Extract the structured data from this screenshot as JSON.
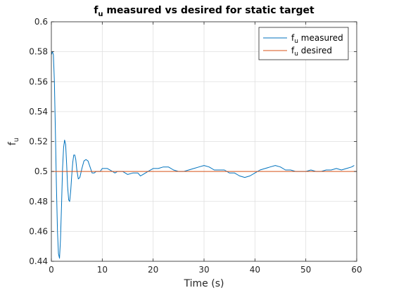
{
  "chart_data": {
    "type": "line",
    "title": "f measured vs desired for static target",
    "title_main": "f",
    "title_sub": "u",
    "title_rest": " measured vs desired for static target",
    "xlabel": "Time (s)",
    "ylabel_main": "f",
    "ylabel_sub": "u",
    "xlim": [
      0,
      60
    ],
    "ylim": [
      0.44,
      0.6
    ],
    "xticks": [
      0,
      10,
      20,
      30,
      40,
      50,
      60
    ],
    "yticks": [
      0.44,
      0.46,
      0.48,
      0.5,
      0.52,
      0.54,
      0.56,
      0.58,
      0.6
    ],
    "xtick_labels": [
      "0",
      "10",
      "20",
      "30",
      "40",
      "50",
      "60"
    ],
    "ytick_labels": [
      "0.44",
      "0.46",
      "0.48",
      "0.5",
      "0.52",
      "0.54",
      "0.56",
      "0.58",
      "0.6"
    ],
    "grid": true,
    "legend_position": "top-right",
    "series": [
      {
        "name_main": "f",
        "name_sub": "u",
        "name_rest": " measured",
        "color": "#0072bd",
        "x": [
          0,
          0.2,
          0.4,
          0.6,
          0.8,
          1.0,
          1.2,
          1.4,
          1.6,
          1.8,
          2.0,
          2.2,
          2.4,
          2.6,
          2.8,
          3.0,
          3.2,
          3.4,
          3.6,
          3.8,
          4.0,
          4.2,
          4.4,
          4.6,
          4.8,
          5.0,
          5.3,
          5.6,
          6.0,
          6.4,
          6.8,
          7.2,
          7.6,
          8.0,
          8.4,
          8.8,
          9.2,
          9.6,
          10,
          11,
          12,
          12.5,
          13,
          14,
          15,
          16,
          17,
          17.5,
          18,
          19,
          20,
          21,
          22,
          23,
          24,
          25,
          26,
          27,
          28,
          29,
          30,
          31,
          32,
          33,
          34,
          35,
          36,
          37,
          38,
          39,
          40,
          41,
          42,
          43,
          44,
          45,
          46,
          47,
          48,
          49,
          50,
          51,
          52,
          53,
          54,
          55,
          56,
          57,
          58,
          59,
          59.5
        ],
        "y": [
          0.578,
          0.58,
          0.578,
          0.56,
          0.525,
          0.49,
          0.46,
          0.445,
          0.442,
          0.455,
          0.478,
          0.502,
          0.516,
          0.521,
          0.518,
          0.505,
          0.49,
          0.481,
          0.48,
          0.487,
          0.497,
          0.506,
          0.511,
          0.511,
          0.508,
          0.501,
          0.495,
          0.496,
          0.502,
          0.507,
          0.508,
          0.507,
          0.503,
          0.499,
          0.499,
          0.5,
          0.5,
          0.5,
          0.502,
          0.502,
          0.5,
          0.499,
          0.5,
          0.5,
          0.498,
          0.499,
          0.499,
          0.497,
          0.498,
          0.5,
          0.502,
          0.502,
          0.503,
          0.503,
          0.501,
          0.5,
          0.5,
          0.501,
          0.502,
          0.503,
          0.504,
          0.503,
          0.501,
          0.501,
          0.501,
          0.499,
          0.499,
          0.497,
          0.496,
          0.497,
          0.499,
          0.501,
          0.502,
          0.503,
          0.504,
          0.503,
          0.501,
          0.501,
          0.5,
          0.5,
          0.5,
          0.501,
          0.5,
          0.5,
          0.501,
          0.501,
          0.502,
          0.501,
          0.502,
          0.503,
          0.504
        ]
      },
      {
        "name_main": "f",
        "name_sub": "u",
        "name_rest": " desired",
        "color": "#d95319",
        "x": [
          0,
          60
        ],
        "y": [
          0.5,
          0.5
        ]
      }
    ]
  }
}
